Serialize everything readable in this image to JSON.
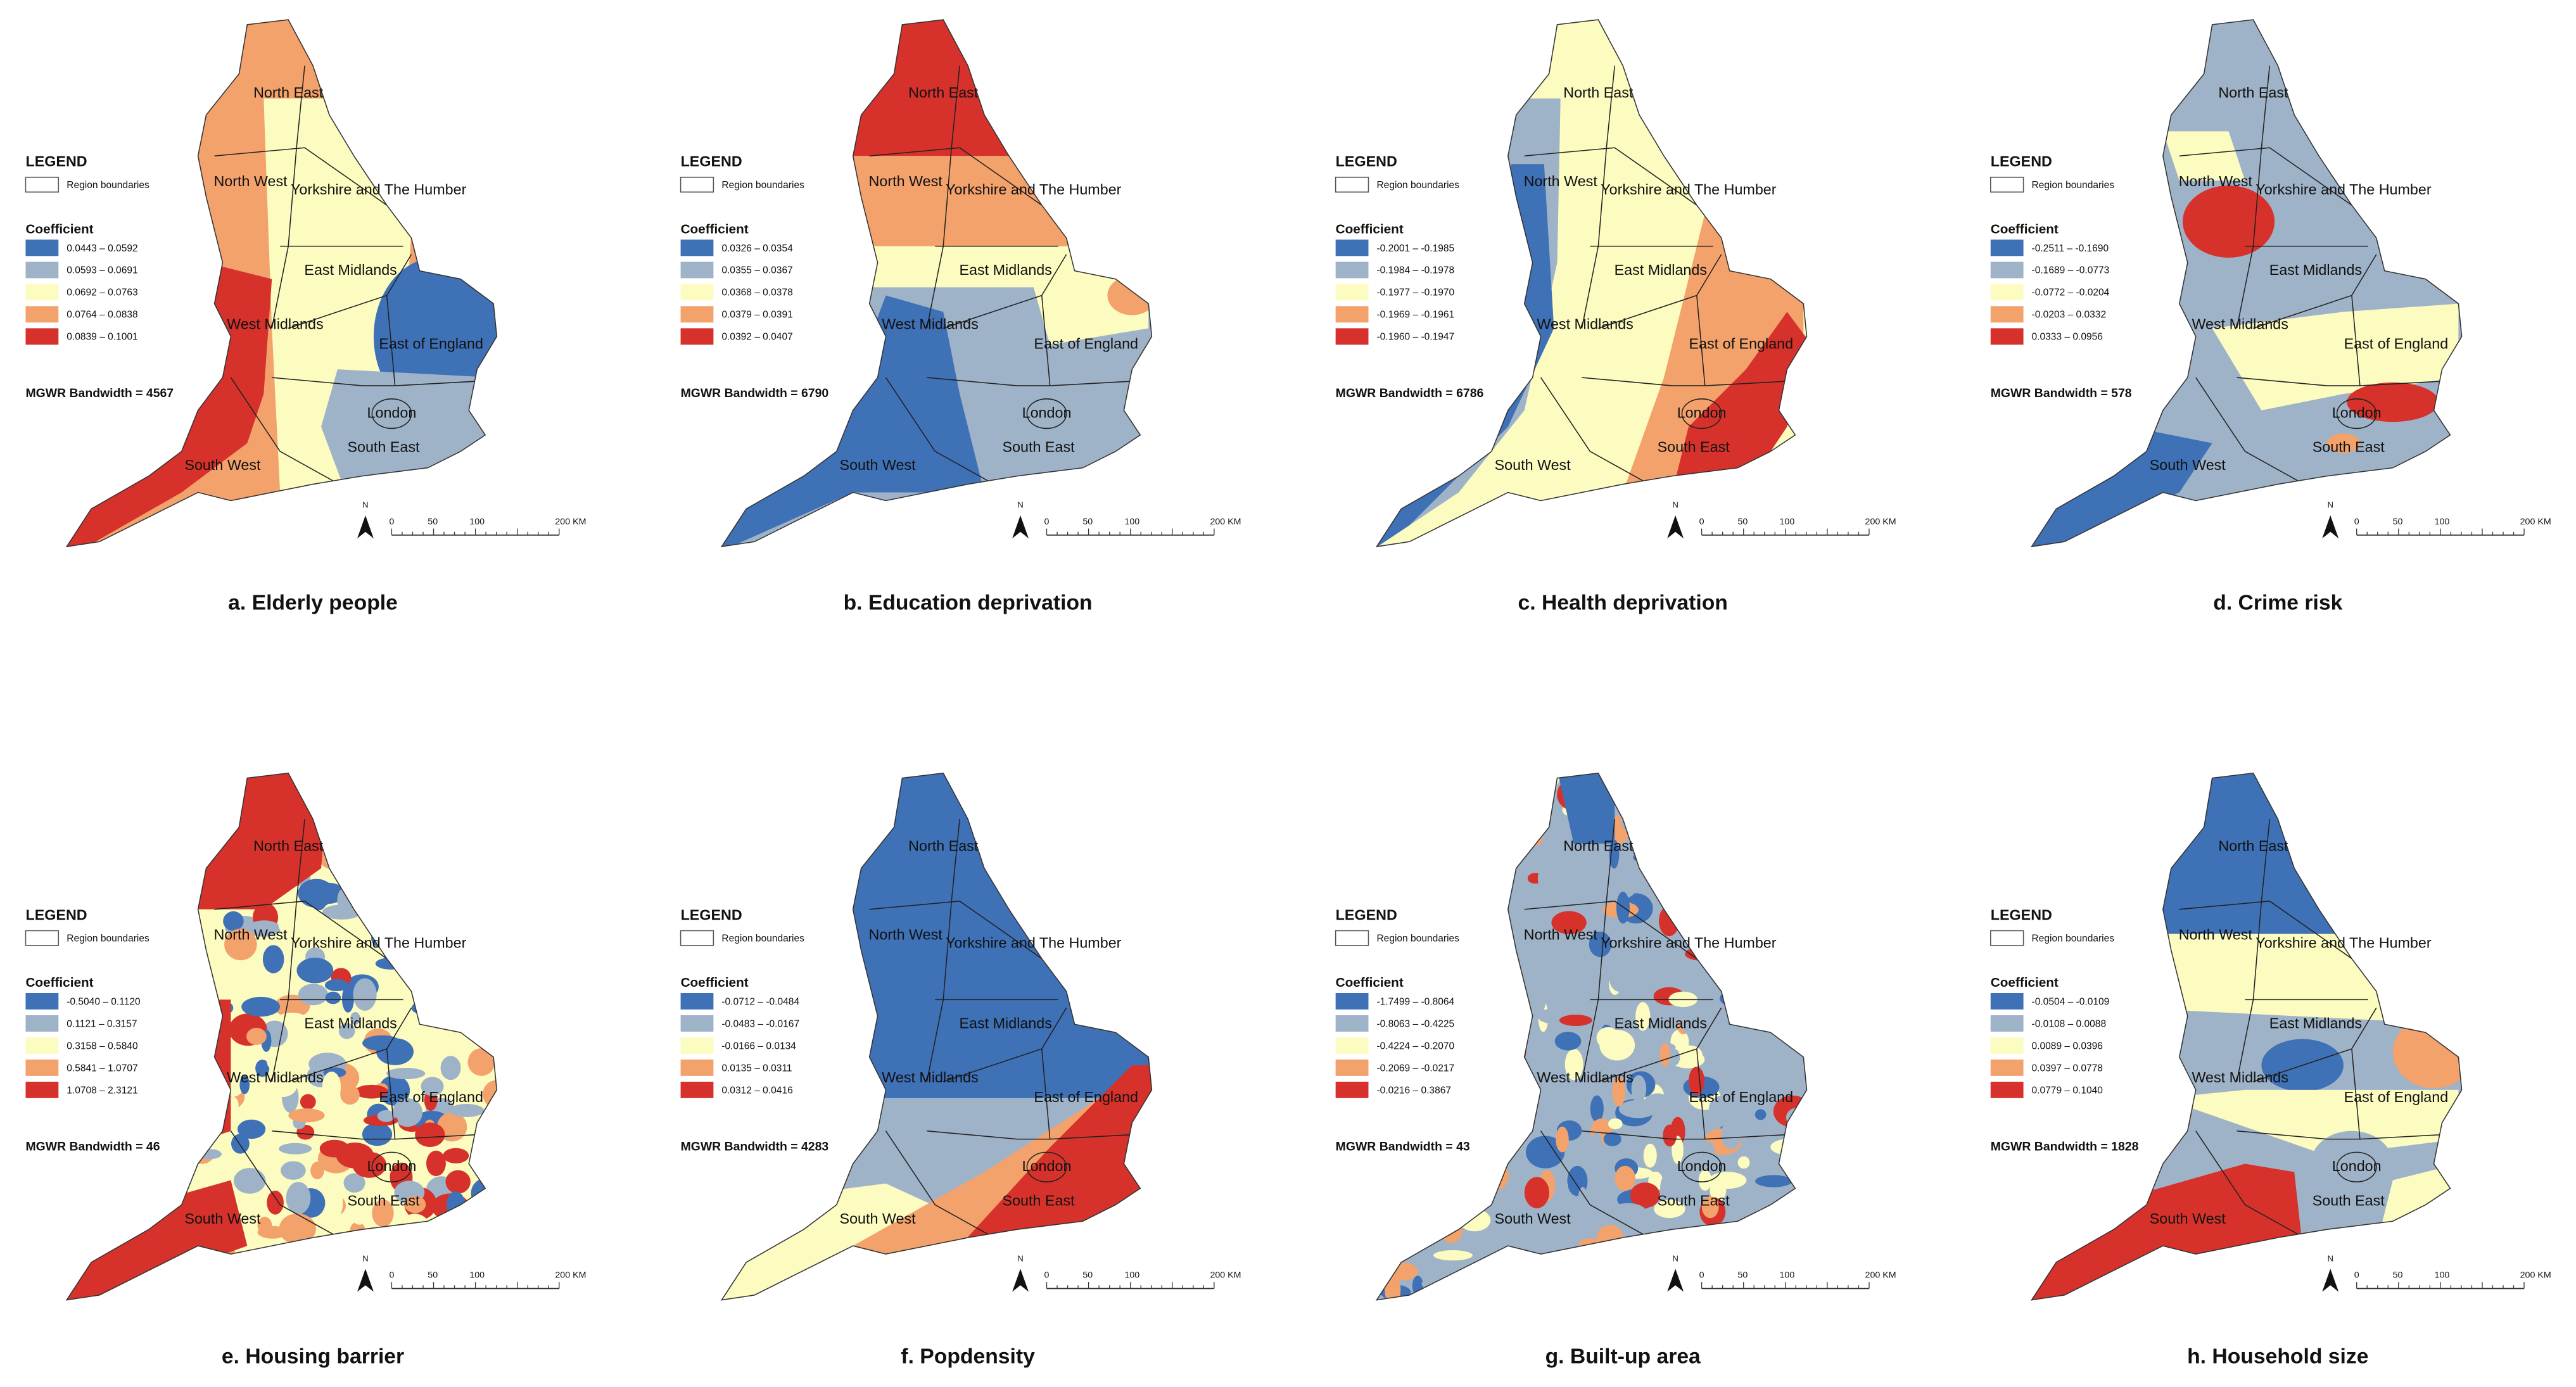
{
  "legend": {
    "title": "LEGEND",
    "boundary": "Region boundaries",
    "coefficient": "Coefficient",
    "colors": [
      "#3f71b7",
      "#9fb3c8",
      "#fcfbc0",
      "#f3a26c",
      "#d6322b"
    ]
  },
  "regions": [
    "North East",
    "North West",
    "Yorkshire and The Humber",
    "East Midlands",
    "West Midlands",
    "East of England",
    "London",
    "South East",
    "South West"
  ],
  "north": "N",
  "scale": [
    "0",
    "50",
    "100",
    "200 KM"
  ],
  "panels": [
    {
      "caption": "a. Elderly people",
      "bandwidth": "MGWR Bandwidth = 4567",
      "classes": [
        "0.0443 – 0.0592",
        "0.0593 – 0.0691",
        "0.0692 – 0.0763",
        "0.0764 – 0.0838",
        "0.0839 – 0.1001"
      ]
    },
    {
      "caption": "b. Education deprivation",
      "bandwidth": "MGWR Bandwidth = 6790",
      "classes": [
        "0.0326 – 0.0354",
        "0.0355 – 0.0367",
        "0.0368 – 0.0378",
        "0.0379 – 0.0391",
        "0.0392 – 0.0407"
      ]
    },
    {
      "caption": "c. Health deprivation",
      "bandwidth": "MGWR Bandwidth = 6786",
      "classes": [
        "-0.2001 – -0.1985",
        "-0.1984 – -0.1978",
        "-0.1977 – -0.1970",
        "-0.1969 – -0.1961",
        "-0.1960 – -0.1947"
      ]
    },
    {
      "caption": "d. Crime risk",
      "bandwidth": "MGWR Bandwidth = 578",
      "classes": [
        "-0.2511 – -0.1690",
        "-0.1689 – -0.0773",
        "-0.0772 – -0.0204",
        "-0.0203 – 0.0332",
        "0.0333 – 0.0956"
      ]
    },
    {
      "caption": "e. Housing barrier",
      "bandwidth": "MGWR Bandwidth = 46",
      "classes": [
        "-0.5040 – 0.1120",
        "0.1121 – 0.3157",
        "0.3158 – 0.5840",
        "0.5841 – 1.0707",
        "1.0708 – 2.3121"
      ]
    },
    {
      "caption": "f. Popdensity",
      "bandwidth": "MGWR Bandwidth = 4283",
      "classes": [
        "-0.0712 – -0.0484",
        "-0.0483 – -0.0167",
        "-0.0166 – 0.0134",
        "0.0135 – 0.0311",
        "0.0312 – 0.0416"
      ]
    },
    {
      "caption": "g. Built-up area",
      "bandwidth": "MGWR Bandwidth = 43",
      "classes": [
        "-1.7499 – -0.8064",
        "-0.8063 – -0.4225",
        "-0.4224 – -0.2070",
        "-0.2069 – -0.0217",
        "-0.0216 – 0.3867"
      ]
    },
    {
      "caption": "h. Household size",
      "bandwidth": "MGWR Bandwidth = 1828",
      "classes": [
        "-0.0504 – -0.0109",
        "-0.0108 – 0.0088",
        "0.0089 – 0.0396",
        "0.0397 – 0.0778",
        "0.0779 – 0.1040"
      ]
    }
  ]
}
